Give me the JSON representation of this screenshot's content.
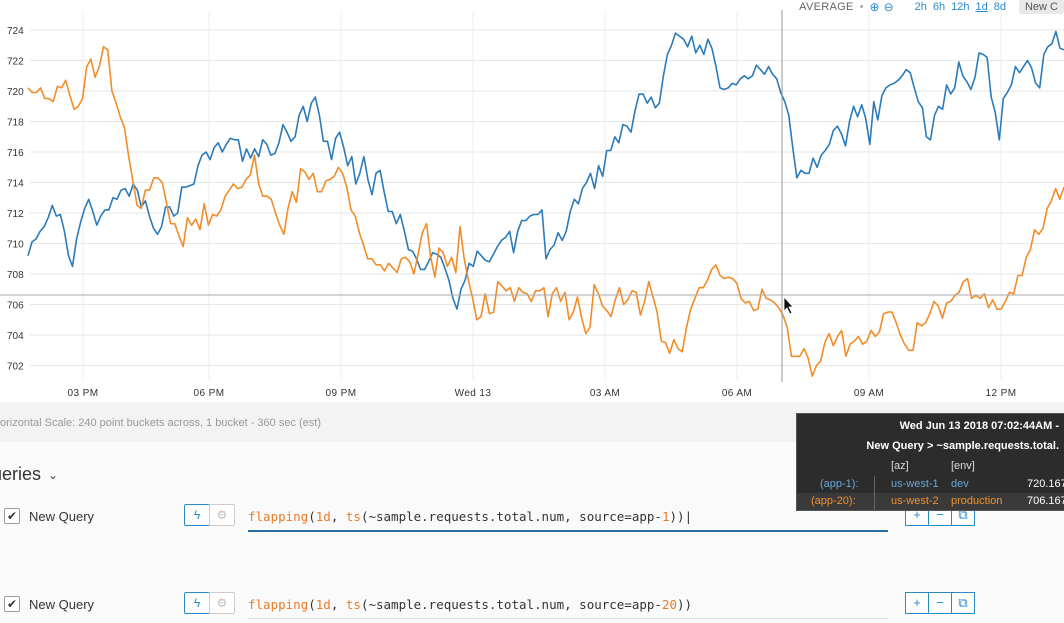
{
  "toolbar": {
    "aggregation": "AVERAGE",
    "zoom_in_icon": "zoom-in-icon",
    "zoom_out_icon": "zoom-out-icon",
    "time_ranges": [
      "2h",
      "6h",
      "12h",
      "1d",
      "8d"
    ],
    "active_range": "1d",
    "new_chart_label": "New C"
  },
  "chart_data": {
    "type": "line",
    "y_ticks": [
      "702",
      "704",
      "706",
      "708",
      "710",
      "712",
      "714",
      "716",
      "718",
      "720",
      "722",
      "724"
    ],
    "ylim": [
      701,
      725
    ],
    "x_ticks": [
      "03 PM",
      "06 PM",
      "09 PM",
      "Wed 13",
      "03 AM",
      "06 AM",
      "09 AM",
      "12 PM"
    ],
    "grid": true,
    "series": [
      {
        "color": "#2b7bba",
        "values": [
          709.2,
          710.1,
          710.3,
          710.8,
          711.1,
          711.7,
          712.5,
          711.8,
          711.9,
          710.8,
          709.2,
          708.5,
          710.3,
          711.4,
          712.3,
          712.9,
          712.1,
          711.2,
          711.8,
          712.2,
          712.2,
          713.0,
          712.9,
          713.5,
          713.6,
          713.1,
          713.9,
          713.5,
          712.4,
          712.8,
          711.8,
          711.0,
          710.6,
          711.1,
          712.4,
          712.4,
          711.8,
          712.0,
          713.7,
          713.7,
          713.8,
          713.9,
          715.1,
          715.8,
          716.0,
          715.5,
          716.3,
          716.6,
          716.0,
          716.5,
          716.9,
          716.8,
          716.8,
          715.4,
          716.2,
          715.6,
          716.2,
          715.7,
          716.8,
          716.5,
          715.8,
          715.9,
          716.6,
          717.8,
          717.3,
          716.7,
          717.0,
          718.4,
          719.0,
          718.0,
          719.2,
          719.6,
          718.4,
          716.7,
          716.7,
          715.5,
          716.9,
          717.3,
          716.3,
          715.1,
          715.7,
          713.9,
          714.6,
          715.7,
          714.2,
          713.2,
          714.6,
          714.8,
          713.4,
          712.1,
          712.1,
          711.3,
          711.9,
          710.8,
          709.6,
          709.5,
          709.0,
          708.3,
          708.3,
          708.8,
          709.4,
          709.3,
          709.1,
          708.4,
          707.6,
          706.4,
          705.7,
          707.0,
          707.6,
          708.7,
          708.5,
          709.5,
          709.2,
          708.9,
          708.8,
          709.3,
          709.8,
          710.2,
          710.4,
          710.8,
          709.4,
          710.8,
          711.5,
          711.5,
          711.8,
          711.9,
          711.9,
          712.2,
          709.0,
          709.6,
          709.9,
          710.7,
          710.2,
          710.8,
          712.1,
          712.9,
          712.6,
          713.6,
          714.0,
          714.6,
          713.6,
          715.1,
          714.4,
          716.1,
          716.1,
          717.0,
          716.6,
          717.8,
          717.7,
          717.3,
          718.7,
          719.8,
          719.8,
          719.2,
          719.6,
          718.9,
          719.2,
          721.0,
          722.4,
          723.0,
          723.8,
          723.6,
          723.4,
          722.9,
          723.6,
          722.5,
          723.0,
          722.4,
          723.4,
          722.8,
          721.6,
          720.2,
          720.1,
          720.2,
          720.5,
          720.4,
          720.8,
          721.0,
          720.8,
          721.0,
          721.7,
          721.4,
          721.1,
          721.6,
          721.1,
          720.8,
          719.9,
          719.3,
          718.4,
          716.2,
          714.3,
          714.8,
          714.6,
          714.6,
          715.6,
          715.0,
          715.8,
          716.1,
          716.5,
          717.4,
          717.7,
          717.2,
          716.4,
          718.0,
          719.0,
          718.3,
          719.1,
          718.2,
          716.5,
          719.3,
          718.1,
          719.7,
          720.2,
          720.4,
          720.5,
          720.7,
          721.0,
          721.4,
          721.2,
          720.2,
          719.3,
          718.9,
          717.0,
          716.8,
          718.4,
          719.0,
          718.8,
          720.4,
          719.8,
          720.2,
          721.9,
          721.0,
          720.6,
          720.1,
          720.9,
          722.5,
          722.4,
          722.2,
          719.6,
          718.6,
          716.8,
          719.5,
          719.9,
          720.4,
          721.6,
          721.2,
          721.6,
          722.0,
          721.5,
          720.5,
          720.2,
          722.4,
          722.9,
          723.1,
          723.9,
          722.8,
          722.7
        ]
      },
      {
        "color": "#f28c28",
        "values": [
          720.2,
          719.9,
          719.9,
          720.2,
          719.5,
          719.5,
          719.3,
          720.3,
          720.2,
          720.7,
          719.7,
          718.8,
          719.0,
          719.5,
          721.6,
          722.1,
          720.9,
          721.6,
          722.9,
          722.7,
          720.0,
          719.2,
          718.3,
          717.6,
          715.7,
          714.1,
          712.5,
          712.3,
          713.5,
          713.5,
          714.3,
          714.3,
          714.0,
          712.7,
          711.3,
          711.3,
          710.5,
          709.8,
          711.7,
          711.2,
          711.6,
          710.9,
          712.6,
          711.2,
          711.9,
          711.8,
          712.2,
          713.1,
          713.5,
          713.9,
          713.6,
          713.7,
          714.2,
          714.5,
          715.8,
          713.9,
          713.1,
          713.1,
          712.9,
          712.0,
          711.2,
          710.6,
          712.3,
          713.4,
          712.7,
          714.9,
          714.7,
          714.2,
          714.6,
          713.4,
          713.4,
          714.1,
          714.2,
          714.4,
          715.0,
          714.6,
          713.7,
          712.2,
          711.8,
          710.7,
          709.9,
          709.0,
          709.0,
          708.6,
          708.6,
          708.2,
          708.7,
          708.4,
          708.1,
          709.0,
          709.1,
          708.8,
          708.0,
          709.3,
          710.7,
          711.3,
          709.1,
          707.8,
          709.7,
          709.4,
          708.5,
          709.1,
          708.1,
          711.1,
          709.0,
          707.6,
          706.4,
          705.0,
          705.2,
          706.7,
          705.4,
          705.5,
          707.5,
          707.2,
          706.9,
          707.1,
          706.2,
          707.1,
          706.8,
          706.7,
          706.2,
          706.9,
          706.9,
          707.1,
          705.2,
          706.7,
          707.1,
          706.2,
          706.8,
          705.0,
          705.5,
          706.5,
          705.1,
          704.1,
          704.5,
          707.3,
          706.7,
          705.9,
          705.6,
          705.2,
          706.3,
          707.1,
          706.0,
          706.3,
          706.9,
          706.8,
          705.3,
          706.2,
          707.5,
          706.5,
          705.5,
          703.6,
          703.5,
          702.8,
          703.7,
          703.1,
          702.9,
          704.5,
          705.7,
          706.4,
          707.1,
          707.1,
          707.6,
          708.3,
          708.6,
          707.9,
          707.7,
          707.8,
          707.7,
          707.4,
          706.4,
          706.1,
          706.2,
          705.6,
          705.7,
          707.0,
          706.4,
          706.3,
          706.1,
          705.8,
          705.3,
          704.5,
          702.6,
          702.6,
          702.6,
          703.1,
          702.5,
          701.3,
          702.0,
          702.3,
          703.5,
          704.1,
          703.3,
          703.9,
          704.3,
          702.6,
          703.4,
          703.6,
          703.9,
          703.4,
          703.6,
          704.3,
          703.9,
          704.2,
          705.4,
          705.5,
          705.5,
          704.8,
          704.0,
          703.4,
          703.0,
          703.0,
          704.8,
          704.6,
          704.8,
          705.4,
          706.2,
          705.9,
          705.1,
          706.1,
          706.2,
          706.6,
          706.8,
          707.5,
          707.7,
          706.4,
          706.6,
          706.4,
          706.7,
          705.8,
          706.3,
          705.7,
          705.7,
          706.2,
          706.8,
          706.7,
          707.9,
          707.9,
          709.1,
          709.6,
          710.9,
          710.6,
          711.0,
          712.3,
          712.8,
          713.6,
          712.9,
          713.7
        ]
      }
    ],
    "crosshair_time": "Wed Jun 13 2018 07:02:44AM"
  },
  "scale_text": "orizontal Scale: 240 point buckets across, 1 bucket - 360 sec (est)",
  "queries": {
    "title": "ueries",
    "chevron_icon": "chevron-down-icon",
    "rows": [
      {
        "name": "New Query",
        "checked": "✔",
        "expr": {
          "fn": "flapping",
          "p1": "(",
          "num": "1d",
          "p2": ", ",
          "fn2": "ts",
          "p3": "(~sample.requests.total.num, source=app-",
          "num2": "1",
          "p4": "))"
        },
        "side": [
          "+",
          "−",
          "⧉"
        ]
      },
      {
        "name": "New Query",
        "checked": "✔",
        "expr": {
          "fn": "flapping",
          "p1": "(",
          "num": "1d",
          "p2": ", ",
          "fn2": "ts",
          "p3": "(~sample.requests.total.num, source=app-",
          "num2": "20",
          "p4": "))"
        },
        "side": [
          "+",
          "−",
          "⧉"
        ]
      }
    ]
  },
  "tooltip": {
    "date": "Wed Jun 13 2018 07:02:44AM -",
    "query": "New Query > ~sample.requests.total.",
    "headers": [
      "[az]",
      "[env]"
    ],
    "rows": [
      {
        "source": "(app-1):",
        "az": "us-west-1",
        "env": "dev",
        "value": "720.167",
        "color": "#6aa8d8"
      },
      {
        "source": "(app-20):",
        "az": "us-west-2",
        "env": "production",
        "value": "706.167",
        "color": "#f0912f"
      }
    ]
  }
}
